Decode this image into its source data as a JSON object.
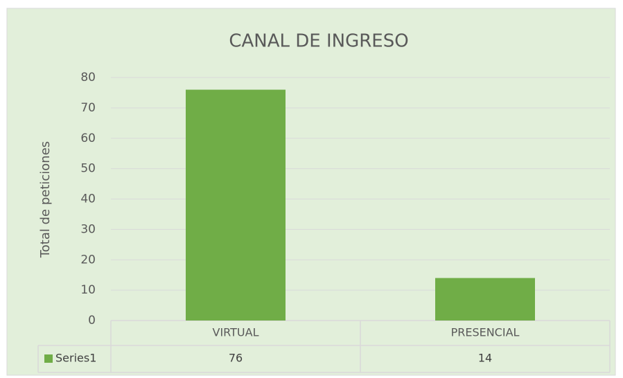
{
  "chart_data": {
    "type": "bar",
    "title": "CANAL DE INGRESO",
    "y_label": "Total de peticiones",
    "categories": [
      "VIRTUAL",
      "PRESENCIAL"
    ],
    "series": [
      {
        "name": "Series1",
        "color": "#70ad47",
        "values": [
          76,
          14
        ]
      }
    ],
    "ylim": [
      0,
      80
    ],
    "yticks": [
      0,
      10,
      20,
      30,
      40,
      50,
      60,
      70,
      80
    ],
    "grid": true,
    "data_table": true
  }
}
